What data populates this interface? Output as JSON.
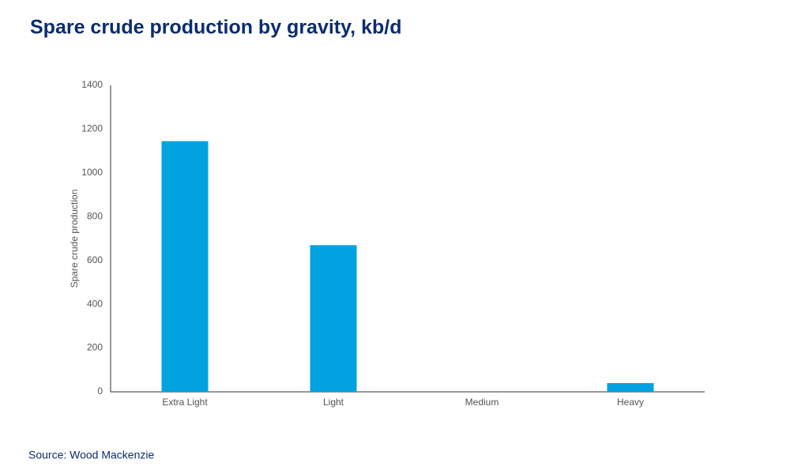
{
  "chart_data": {
    "type": "bar",
    "title": "Spare crude production by gravity, kb/d",
    "y_label": "Spare crude production",
    "source": "Source: Wood Mackenzie",
    "categories": [
      "Extra Light",
      "Light",
      "Medium",
      "Heavy"
    ],
    "values": [
      1145,
      670,
      0,
      40
    ],
    "color": "#00a3e0",
    "ylim": [
      0,
      1400
    ],
    "yticks": [
      0,
      200,
      400,
      600,
      800,
      1000,
      1200,
      1400
    ],
    "grid": false
  }
}
